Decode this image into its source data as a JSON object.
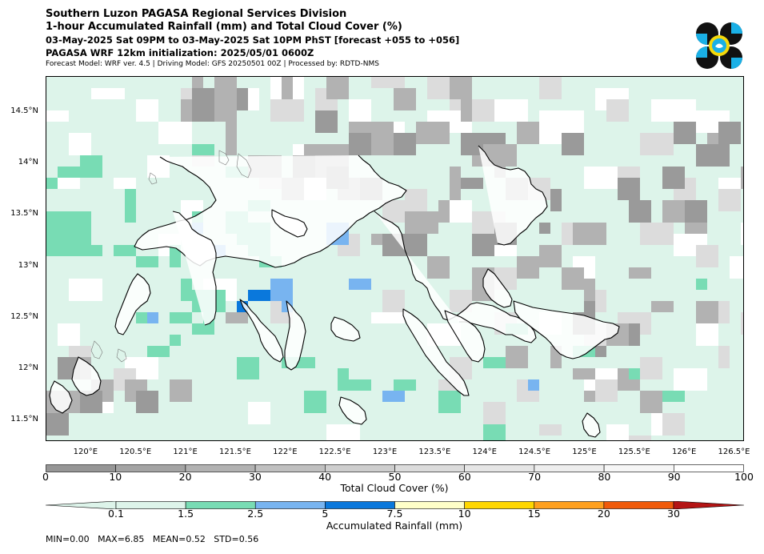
{
  "header": {
    "title_line1": "Southern Luzon PAGASA Regional Services Division",
    "title_line2": "1-hour Accumulated Rainfall (mm) and Total Cloud Cover (%)",
    "time_range": "03-May-2025 Sat 09PM to 03-May-2025 Sat 10PM PhST [forecast +055 to +056]",
    "init": "PAGASA WRF 12km initialization: 2025/05/01 0600Z",
    "model_info": "Forecast Model: WRF ver. 4.5 | Driving Model: GFS 20250501 00Z | Processed by: RDTD-NMS"
  },
  "logo": {
    "icon": "pagasa-logo-icon",
    "colors": {
      "black": "#111111",
      "blue": "#1ab0e6",
      "yellow": "#f5d90a"
    }
  },
  "map": {
    "lon_range": [
      119.6,
      126.6
    ],
    "lat_range": [
      11.3,
      14.85
    ],
    "lat_ticks": [
      "14.5°N",
      "14°N",
      "13.5°N",
      "13°N",
      "12.5°N",
      "12°N",
      "11.5°N"
    ],
    "lat_values": [
      14.5,
      14.0,
      13.5,
      13.0,
      12.5,
      12.0,
      11.5
    ],
    "lon_ticks": [
      "120°E",
      "120.5°E",
      "121°E",
      "121.5°E",
      "122°E",
      "122.5°E",
      "123°E",
      "123.5°E",
      "124°E",
      "124.5°E",
      "125°E",
      "125.5°E",
      "126°E",
      "126.5°E"
    ],
    "lon_values": [
      120.0,
      120.5,
      121.0,
      121.5,
      122.0,
      122.5,
      123.0,
      123.5,
      124.0,
      124.5,
      125.0,
      125.5,
      126.0,
      126.5
    ],
    "colors": {
      "background_rain": "#ddf4ea",
      "coast": "#000000",
      "cloud_50": "#e6e6e6",
      "cloud_70": "#c8c8c8",
      "cloud_90": "#9a9a9a",
      "rain_1_5": "#78dcb4",
      "rain_2_5": "#78b4f0",
      "rain_5": "#0a78dc"
    }
  },
  "cloud_bar": {
    "ticks": [
      "0",
      "10",
      "20",
      "30",
      "40",
      "50",
      "60",
      "70",
      "80",
      "90",
      "100"
    ],
    "label": "Total Cloud Cover (%)",
    "colors": [
      "#969696",
      "#a4a4a4",
      "#b2b2b2",
      "#c0c0c0",
      "#cecece",
      "#dcdcdc",
      "#e6e6e6",
      "#eeeeee",
      "#f6f6f6",
      "#ffffff"
    ]
  },
  "rain_bar": {
    "ticks": [
      "0.1",
      "1.5",
      "2.5",
      "5",
      "7.5",
      "10",
      "15",
      "20",
      "30"
    ],
    "label": "Accumulated Rainfall (mm)",
    "colors": [
      "#ddf4ea",
      "#78dcb4",
      "#78b4f0",
      "#0a78dc",
      "#ffffc8",
      "#ffd700",
      "#ffa01e",
      "#f05a0a",
      "#b41414"
    ]
  },
  "stats": "MIN=0.00   MAX=6.85   MEAN=0.52   STD=0.56"
}
